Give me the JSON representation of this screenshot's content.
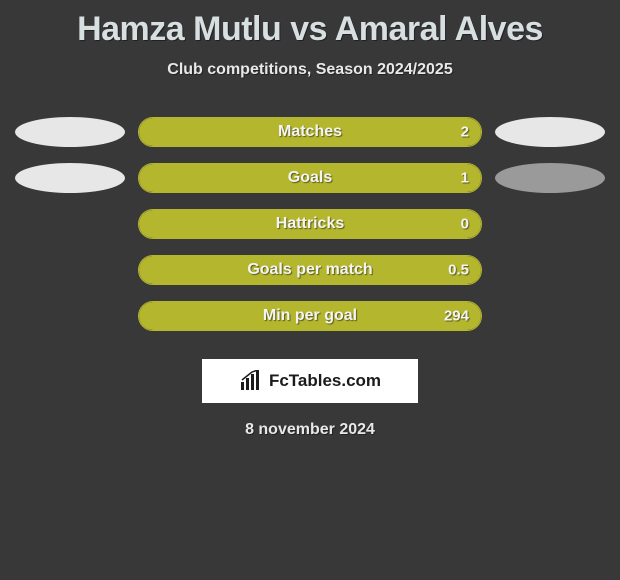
{
  "header": {
    "title": "Hamza Mutlu vs Amaral Alves",
    "subtitle": "Club competitions, Season 2024/2025"
  },
  "colors": {
    "background": "#393838",
    "bar_fill": "#b4b72e",
    "bar_border": "#b4b72e",
    "ellipse_light": "#e7e7e7",
    "ellipse_dark": "#9a9a9a",
    "text_light": "#f4f4f4"
  },
  "stats": [
    {
      "label": "Matches",
      "value": "2",
      "fill_pct": 100,
      "left_ellipse": "light",
      "right_ellipse": "light"
    },
    {
      "label": "Goals",
      "value": "1",
      "fill_pct": 100,
      "left_ellipse": "light",
      "right_ellipse": "dark"
    },
    {
      "label": "Hattricks",
      "value": "0",
      "fill_pct": 100,
      "left_ellipse": null,
      "right_ellipse": null
    },
    {
      "label": "Goals per match",
      "value": "0.5",
      "fill_pct": 100,
      "left_ellipse": null,
      "right_ellipse": null
    },
    {
      "label": "Min per goal",
      "value": "294",
      "fill_pct": 100,
      "left_ellipse": null,
      "right_ellipse": null
    }
  ],
  "branding": {
    "logo_text": "FcTables.com"
  },
  "footer": {
    "date": "8 november 2024"
  }
}
